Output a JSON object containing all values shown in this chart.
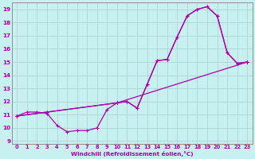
{
  "xlabel": "Windchill (Refroidissement éolien,°C)",
  "bg_color": "#c8f0f0",
  "grid_color": "#b0d8d8",
  "line_color": "#aa00aa",
  "xlim": [
    -0.5,
    23.5
  ],
  "ylim": [
    8.8,
    19.5
  ],
  "xticks": [
    0,
    1,
    2,
    3,
    4,
    5,
    6,
    7,
    8,
    9,
    10,
    11,
    12,
    13,
    14,
    15,
    16,
    17,
    18,
    19,
    20,
    21,
    22,
    23
  ],
  "yticks": [
    9,
    10,
    11,
    12,
    13,
    14,
    15,
    16,
    17,
    18,
    19
  ],
  "line1_x": [
    0,
    1,
    2,
    3,
    4,
    5,
    6,
    7,
    8,
    9,
    10,
    11,
    12,
    13,
    14,
    15,
    16,
    17,
    18,
    19,
    20,
    21,
    22,
    23
  ],
  "line1_y": [
    10.9,
    11.2,
    11.2,
    11.1,
    10.2,
    9.7,
    9.8,
    9.8,
    10.0,
    11.4,
    11.9,
    12.0,
    11.5,
    13.3,
    15.1,
    15.2,
    16.9,
    18.5,
    19.0,
    19.2,
    18.5,
    15.7,
    14.9,
    15.0
  ],
  "line2_x": [
    0,
    3,
    10,
    11,
    12,
    13,
    14,
    15,
    16,
    17,
    18,
    19,
    20,
    21,
    22,
    23
  ],
  "line2_y": [
    10.9,
    11.2,
    11.9,
    12.0,
    11.5,
    13.3,
    15.1,
    15.2,
    16.9,
    18.5,
    19.0,
    19.2,
    18.5,
    15.7,
    14.9,
    15.0
  ],
  "line3_x": [
    0,
    3,
    10,
    23
  ],
  "line3_y": [
    10.9,
    11.2,
    11.9,
    15.0
  ]
}
